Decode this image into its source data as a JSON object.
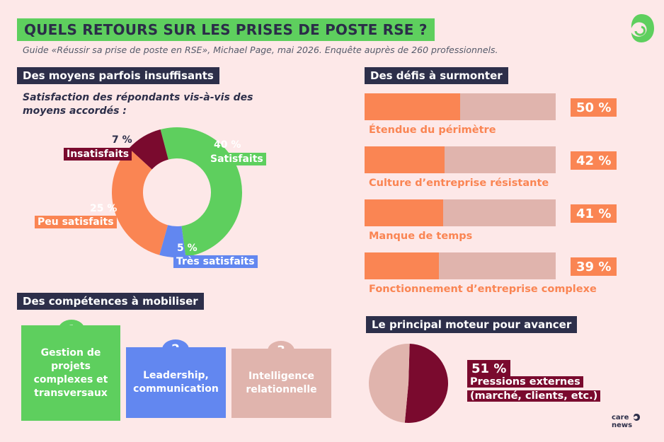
{
  "title": "QUELS RETOURS SUR LES PRISES DE POSTE RSE ?",
  "subtitle": "Guide «Réussir sa prise de poste en RSE», Michael Page, mai 2026. Enquête auprès de 260 professionnels.",
  "colors": {
    "background": "#fde8e8",
    "navy": "#2d2f4a",
    "green": "#5ecf5e",
    "orange": "#fa8553",
    "blue": "#6287f0",
    "maroon": "#7a0a2e",
    "pink": "#e0b4ad"
  },
  "sections": {
    "means": "Des moyens parfois insuffisants",
    "challenges": "Des défis à surmonter",
    "skills": "Des compétences à mobiliser",
    "driver": "Le principal moteur pour avancer"
  },
  "satisfaction_question": "Satisfaction des répondants vis-à-vis des moyens accordés :",
  "skills": [
    {
      "rank": "1",
      "label": "Gestion de projets complexes et transversaux",
      "color": "#5ecf5e"
    },
    {
      "rank": "2",
      "label": "Leadership, communication",
      "color": "#6287f0"
    },
    {
      "rank": "3",
      "label": "Intelligence relationnelle",
      "color": "#e0b4ad"
    }
  ],
  "logo": {
    "line1": "care",
    "line2": "news"
  },
  "chart_data": [
    {
      "type": "pie",
      "variant": "donut",
      "slices": [
        {
          "label": "Satisfaits",
          "value": 40,
          "display": "40 %",
          "color": "#5ecf5e"
        },
        {
          "label": "Très satisfaits",
          "value": 5,
          "display": "5 %",
          "color": "#6287f0"
        },
        {
          "label": "Peu satisfaits",
          "value": 25,
          "display": "25 %",
          "color": "#fa8553"
        },
        {
          "label": "Insatisfaits",
          "value": 7,
          "display": "7 %",
          "color": "#7a0a2e"
        }
      ]
    },
    {
      "type": "bar",
      "orientation": "horizontal",
      "categories": [
        "Étendue du périmètre",
        "Culture d’entreprise résistante",
        "Manque de temps",
        "Fonctionnement d’entreprise complexe"
      ],
      "values": [
        50,
        42,
        41,
        39
      ],
      "value_labels": [
        "50 %",
        "42 %",
        "41 %",
        "39 %"
      ],
      "xlim": [
        0,
        100
      ]
    },
    {
      "type": "pie",
      "slices": [
        {
          "label": "Pressions externes (marché, clients, etc.)",
          "value": 51,
          "display": "51 %",
          "color": "#7a0a2e"
        },
        {
          "label": "",
          "value": 49,
          "display": "",
          "color": "#e0b4ad"
        }
      ]
    }
  ]
}
